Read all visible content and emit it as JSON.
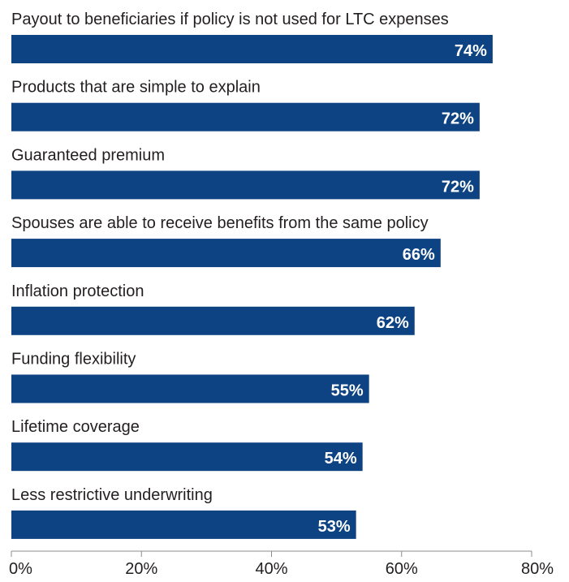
{
  "chart_data": {
    "type": "bar",
    "orientation": "horizontal",
    "title": "",
    "xlabel": "",
    "ylabel": "",
    "categories": [
      "Payout to beneficiaries if policy is not used for LTC expenses",
      "Products that are simple to explain",
      "Guaranteed premium",
      "Spouses are able to receive benefits from the same policy",
      "Inflation protection",
      "Funding flexibility",
      "Lifetime coverage",
      "Less restrictive underwriting"
    ],
    "values": [
      74,
      72,
      72,
      66,
      62,
      55,
      54,
      53
    ],
    "value_labels": [
      "74%",
      "72%",
      "72%",
      "66%",
      "62%",
      "55%",
      "54%",
      "53%"
    ],
    "xlim": [
      0,
      80
    ],
    "ticks": [
      0,
      20,
      40,
      60,
      80
    ],
    "tick_labels": [
      "0%",
      "20%",
      "40%",
      "60%",
      "80%"
    ],
    "grid": false,
    "legend": "none",
    "colors": {
      "bar": "#0d4382",
      "value_text": "#ffffff",
      "label_text": "#231f20",
      "axis": "#8c8c8c"
    }
  }
}
